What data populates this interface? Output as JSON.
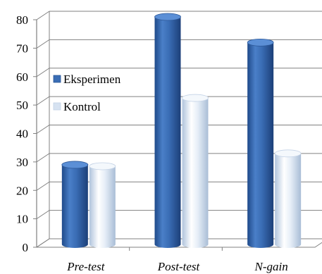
{
  "chart_data": {
    "type": "bar",
    "categories": [
      "Pre-test",
      "Post-test",
      "N-gain"
    ],
    "series": [
      {
        "name": "Eksperimen",
        "values": [
          28,
          80,
          71
        ],
        "color": "#3A6DB5"
      },
      {
        "name": "Kontrol",
        "values": [
          27.5,
          51.5,
          32
        ],
        "color": "#D6E2F1"
      }
    ],
    "ylim": [
      0,
      80
    ],
    "yticks": [
      0,
      10,
      20,
      30,
      40,
      50,
      60,
      70,
      80
    ],
    "grid": true,
    "legend_position": "left-middle",
    "style": "3d-cylinder"
  }
}
